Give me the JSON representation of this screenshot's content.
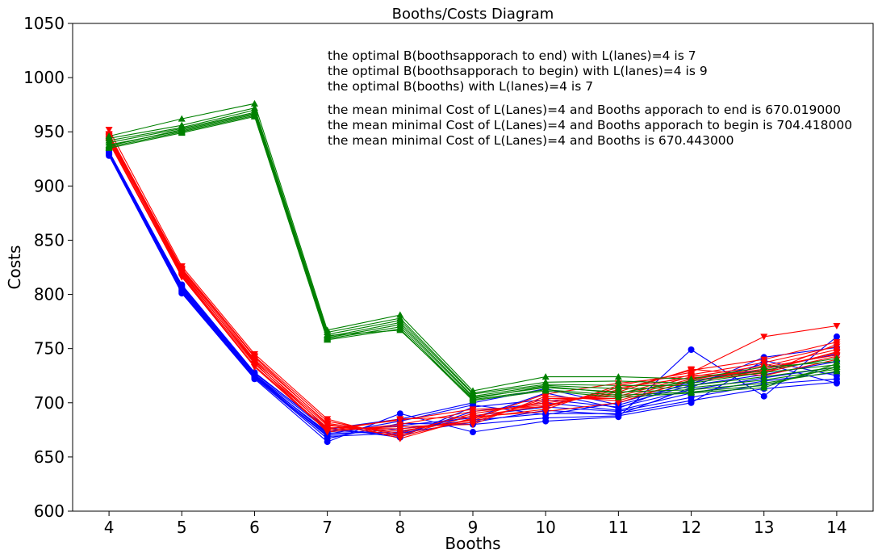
{
  "chart_data": {
    "type": "line",
    "title": "Booths/Costs Diagram",
    "xlabel": "Booths",
    "ylabel": "Costs",
    "xlim": [
      3.5,
      14.5
    ],
    "ylim": [
      600,
      1050
    ],
    "x": [
      4,
      5,
      6,
      7,
      8,
      9,
      10,
      11,
      12,
      13,
      14
    ],
    "xticks": [
      "4",
      "5",
      "6",
      "7",
      "8",
      "9",
      "10",
      "11",
      "12",
      "13",
      "14"
    ],
    "yticks": [
      "600",
      "650",
      "700",
      "750",
      "800",
      "850",
      "900",
      "950",
      "1000",
      "1050"
    ],
    "grid": false,
    "legend": "none",
    "annotations": [
      "the optimal B(boothsapporach to end) with L(lanes)=4 is 7",
      "the optimal B(boothsapporach to begin) with L(lanes)=4 is 9",
      "the optimal B(booths) with L(lanes)=4 is 7",
      "the mean minimal Cost of L(Lanes)=4 and Booths apporach to end is 670.019000",
      "the mean minimal Cost of L(Lanes)=4 and Booths apporach to begin is 704.418000",
      "the mean minimal Cost of L(Lanes)=4 and Booths  is 670.443000"
    ],
    "groups": [
      {
        "color": "#0000ff",
        "marker": "circle",
        "series": [
          {
            "values": [
              928,
              801,
              722,
              664,
              690,
              673,
              683,
              687,
              749,
              706,
              761
            ]
          },
          {
            "values": [
              930,
              803,
              723,
              667,
              681,
              680,
              686,
              688,
              700,
              739,
              725
            ]
          },
          {
            "values": [
              929,
              805,
              724,
              670,
              676,
              684,
              690,
              690,
              702,
              713,
              719
            ]
          },
          {
            "values": [
              931,
              806,
              725,
              672,
              673,
              688,
              696,
              692,
              705,
              717,
              722
            ]
          },
          {
            "values": [
              929,
              807,
              726,
              675,
              670,
              692,
              700,
              693,
              709,
              720,
              728
            ]
          },
          {
            "values": [
              932,
              808,
              727,
              677,
              668,
              696,
              703,
              696,
              712,
              723,
              733
            ]
          },
          {
            "values": [
              930,
              809,
              728,
              676,
              685,
              700,
              713,
              698,
              716,
              726,
              738
            ]
          },
          {
            "values": [
              931,
              804,
              724,
              673,
              679,
              686,
              709,
              695,
              720,
              731,
              745
            ]
          },
          {
            "values": [
              929,
              802,
              723,
              669,
              672,
              682,
              693,
              689,
              714,
              742,
              751
            ]
          },
          {
            "values": [
              930,
              806,
              726,
              671,
              683,
              698,
              689,
              700,
              718,
              736,
              718
            ]
          }
        ]
      },
      {
        "color": "#ff0000",
        "marker": "triangle-down",
        "series": [
          {
            "values": [
              952,
              826,
              745,
              685,
              667,
              686,
              694,
              716,
              728,
              761,
              771
            ]
          },
          {
            "values": [
              948,
              824,
              743,
              683,
              670,
              688,
              697,
              712,
              730,
              740,
              756
            ]
          },
          {
            "values": [
              945,
              822,
              740,
              681,
              672,
              690,
              700,
              708,
              726,
              737,
              752
            ]
          },
          {
            "values": [
              943,
              820,
              738,
              679,
              674,
              684,
              702,
              706,
              724,
              734,
              749
            ]
          },
          {
            "values": [
              941,
              818,
              736,
              677,
              676,
              682,
              704,
              704,
              722,
              731,
              746
            ]
          },
          {
            "values": [
              940,
              817,
              734,
              675,
              678,
              680,
              706,
              702,
              720,
              728,
              743
            ]
          },
          {
            "values": [
              946,
              821,
              737,
              673,
              680,
              692,
              698,
              710,
              731,
              725,
              740
            ]
          },
          {
            "values": [
              944,
              819,
              739,
              676,
              684,
              694,
              696,
              714,
              723,
              729,
              747
            ]
          },
          {
            "values": [
              942,
              816,
              733,
              674,
              685,
              687,
              692,
              700,
              721,
              733,
              744
            ]
          },
          {
            "values": [
              947,
              823,
              742,
              680,
              669,
              685,
              708,
              718,
              725,
              727,
              754
            ]
          }
        ]
      },
      {
        "color": "#008000",
        "marker": "triangle-up",
        "series": [
          {
            "values": [
              946,
              962,
              976,
              767,
              781,
              711,
              724,
              724,
              722,
              733,
              738
            ]
          },
          {
            "values": [
              944,
              956,
              972,
              765,
              778,
              709,
              719,
              720,
              718,
              728,
              735
            ]
          },
          {
            "values": [
              942,
              954,
              970,
              763,
              776,
              708,
              717,
              716,
              716,
              724,
              733
            ]
          },
          {
            "values": [
              940,
              953,
              968,
              761,
              774,
              706,
              716,
              713,
              714,
              721,
              731
            ]
          },
          {
            "values": [
              938,
              951,
              966,
              760,
              772,
              705,
              714,
              710,
              712,
              718,
              729
            ]
          },
          {
            "values": [
              936,
              950,
              965,
              759,
              770,
              703,
              712,
              707,
              710,
              716,
              733
            ]
          },
          {
            "values": [
              935,
              949,
              964,
              758,
              768,
              702,
              711,
              705,
              709,
              714,
              736
            ]
          },
          {
            "values": [
              937,
              952,
              967,
              762,
              767,
              704,
              715,
              709,
              720,
              730,
              741
            ]
          }
        ]
      }
    ]
  }
}
